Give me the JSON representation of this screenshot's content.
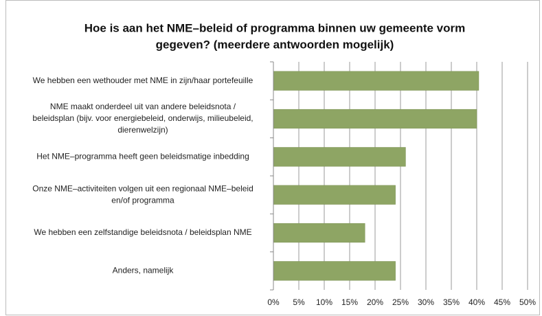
{
  "chart_data": {
    "type": "bar",
    "orientation": "horizontal",
    "title": [
      "Hoe is aan het NME–beleid of programma binnen uw gemeente vorm",
      "gegeven? (meerdere antwoorden mogelijk)"
    ],
    "categories": [
      [
        "We hebben een wethouder met NME in zijn/haar portefeuille"
      ],
      [
        "NME maakt onderdeel uit van andere beleidsnota /",
        "beleidsplan (bijv. voor energiebeleid, onderwijs, milieubeleid,",
        "dierenwelzijn)"
      ],
      [
        "Het NME–programma heeft geen beleidsmatige inbedding"
      ],
      [
        "Onze NME–activiteiten volgen uit een regionaal NME–beleid",
        "en/of programma"
      ],
      [
        "We hebben een zelfstandige beleidsnota / beleidsplan NME"
      ],
      [
        "Anders, namelijk"
      ]
    ],
    "values": [
      40.4,
      40,
      26,
      24,
      18,
      24
    ],
    "color": "#8ea564",
    "xlim": [
      0,
      50
    ],
    "xticks": [
      {
        "value": 0,
        "label": "0%"
      },
      {
        "value": 5,
        "label": "5%"
      },
      {
        "value": 10,
        "label": "10%"
      },
      {
        "value": 15,
        "label": "15%"
      },
      {
        "value": 20,
        "label": "20%"
      },
      {
        "value": 25,
        "label": "25%"
      },
      {
        "value": 30,
        "label": "30%"
      },
      {
        "value": 35,
        "label": "35%"
      },
      {
        "value": 40,
        "label": "40%"
      },
      {
        "value": 45,
        "label": "45%"
      },
      {
        "value": 50,
        "label": "50%"
      }
    ],
    "grid": true
  }
}
